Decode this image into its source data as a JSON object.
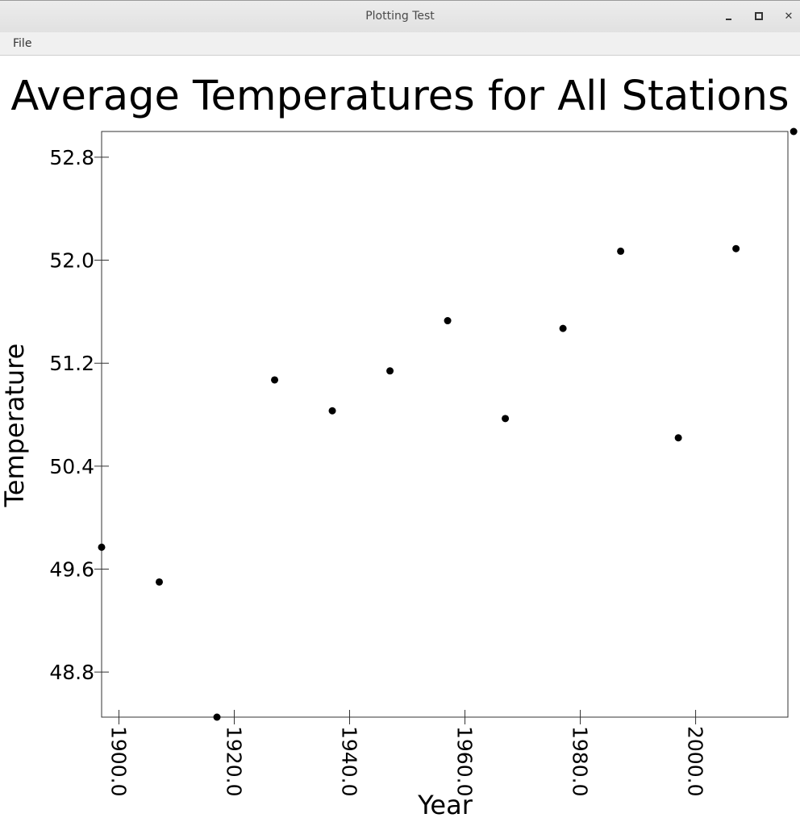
{
  "window": {
    "title": "Plotting Test"
  },
  "menubar": {
    "items": [
      "File"
    ]
  },
  "chart_data": {
    "type": "scatter",
    "title": "Average Temperatures for All Stations",
    "xlabel": "Year",
    "ylabel": "Temperature",
    "xlim": [
      1897,
      2016
    ],
    "ylim": [
      48.45,
      53.0
    ],
    "xticks": [
      1900.0,
      1920.0,
      1940.0,
      1960.0,
      1980.0,
      2000.0
    ],
    "xtick_labels": [
      "1900.0",
      "1920.0",
      "1940.0",
      "1960.0",
      "1980.0",
      "2000.0"
    ],
    "yticks": [
      48.8,
      49.6,
      50.4,
      51.2,
      52.0,
      52.8
    ],
    "ytick_labels": [
      "48.8",
      "49.6",
      "50.4",
      "51.2",
      "52.0",
      "52.8"
    ],
    "x": [
      1897,
      1907,
      1917,
      1927,
      1937,
      1947,
      1957,
      1967,
      1977,
      1987,
      1997,
      2007,
      2017
    ],
    "y": [
      49.77,
      49.5,
      48.45,
      51.07,
      50.83,
      51.14,
      51.53,
      50.77,
      51.47,
      52.07,
      50.62,
      52.09,
      53.0
    ],
    "grid": false,
    "marker_color": "#000000"
  }
}
